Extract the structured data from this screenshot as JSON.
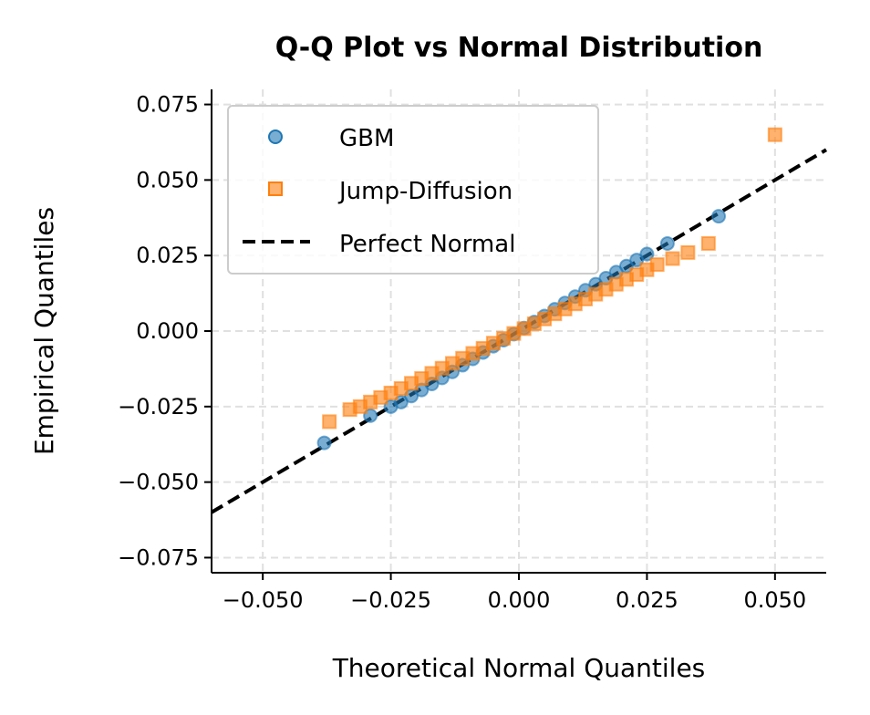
{
  "chart_data": {
    "type": "scatter",
    "title": "Q-Q Plot vs Normal Distribution",
    "xlabel": "Theoretical Normal Quantiles",
    "ylabel": "Empirical Quantiles",
    "xlim": [
      -0.06,
      0.06
    ],
    "ylim": [
      -0.08,
      0.08
    ],
    "xticks": [
      -0.05,
      -0.025,
      0,
      0.025,
      0.05
    ],
    "xtick_labels": [
      "−0.050",
      "−0.025",
      "0.000",
      "0.025",
      "0.050"
    ],
    "yticks": [
      -0.075,
      -0.05,
      -0.025,
      0,
      0.025,
      0.05,
      0.075
    ],
    "ytick_labels": [
      "−0.075",
      "−0.050",
      "−0.025",
      "0.000",
      "0.025",
      "0.050",
      "0.075"
    ],
    "grid": true,
    "legend_placement": "upper-left",
    "series": [
      {
        "name": "GBM",
        "marker": "circle",
        "color": "#1f77b4",
        "x": [
          -0.038,
          -0.029,
          -0.025,
          -0.023,
          -0.021,
          -0.019,
          -0.017,
          -0.015,
          -0.013,
          -0.011,
          -0.009,
          -0.007,
          -0.005,
          -0.003,
          -0.001,
          0.001,
          0.003,
          0.005,
          0.007,
          0.009,
          0.011,
          0.013,
          0.015,
          0.017,
          0.019,
          0.021,
          0.023,
          0.025,
          0.029,
          0.039
        ],
        "y": [
          -0.037,
          -0.028,
          -0.025,
          -0.0235,
          -0.0215,
          -0.0195,
          -0.0175,
          -0.0155,
          -0.0135,
          -0.0113,
          -0.0092,
          -0.0071,
          -0.005,
          -0.003,
          -0.001,
          0.001,
          0.003,
          0.005,
          0.0072,
          0.0093,
          0.0114,
          0.0135,
          0.0155,
          0.0175,
          0.0195,
          0.0215,
          0.0235,
          0.0255,
          0.029,
          0.038
        ]
      },
      {
        "name": "Jump-Diffusion",
        "marker": "square",
        "color": "#ff7f0e",
        "x": [
          -0.037,
          -0.033,
          -0.031,
          -0.029,
          -0.027,
          -0.025,
          -0.023,
          -0.021,
          -0.019,
          -0.017,
          -0.015,
          -0.013,
          -0.011,
          -0.009,
          -0.007,
          -0.005,
          -0.003,
          -0.001,
          0.001,
          0.003,
          0.005,
          0.007,
          0.009,
          0.011,
          0.013,
          0.015,
          0.017,
          0.019,
          0.021,
          0.023,
          0.025,
          0.027,
          0.03,
          0.033,
          0.037,
          0.05
        ],
        "y": [
          -0.03,
          -0.026,
          -0.025,
          -0.0235,
          -0.022,
          -0.0205,
          -0.019,
          -0.0173,
          -0.0157,
          -0.014,
          -0.0123,
          -0.0107,
          -0.009,
          -0.0074,
          -0.0057,
          -0.004,
          -0.0024,
          -0.0008,
          0.0008,
          0.0024,
          0.004,
          0.0057,
          0.0073,
          0.009,
          0.0106,
          0.0122,
          0.0138,
          0.0155,
          0.0171,
          0.0187,
          0.0203,
          0.022,
          0.024,
          0.026,
          0.029,
          0.065
        ]
      }
    ],
    "reference_line": {
      "name": "Perfect Normal",
      "style": "dashed",
      "color": "#000000",
      "slope": 1,
      "intercept": 0
    }
  }
}
